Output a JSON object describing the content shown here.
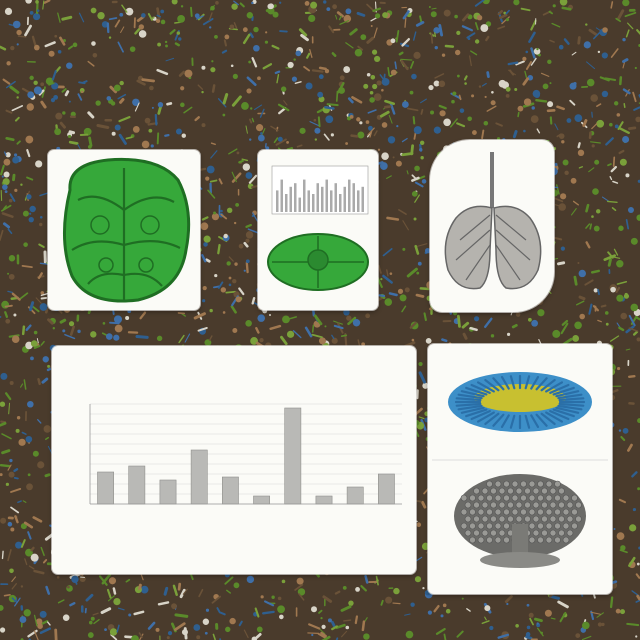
{
  "colors": {
    "ground_dark": "#4a3b2c",
    "ground_mid": "#6a5238",
    "speck_green": "#5a8a2a",
    "speck_blue": "#3f6fa8",
    "speck_light": "#d8d4c8",
    "card_bg": "#fbfbf7",
    "leaf_green": "#36a83a",
    "leaf_dark": "#1f6e23",
    "bar_gray": "#b9b9b6",
    "anemone_blue": "#3d8fc8",
    "anemone_yellow": "#c8c030",
    "coral_gray": "#6b6b68"
  },
  "images": [
    {
      "name": "green-leaf-illustration"
    },
    {
      "name": "mini-chart-with-leaf"
    },
    {
      "name": "gray-lung-sketch"
    },
    {
      "name": "blue-anemone-illustration"
    },
    {
      "name": "gray-coral-tree-illustration"
    }
  ],
  "chart_data": {
    "type": "bar",
    "title": "",
    "xlabel": "",
    "ylabel": "",
    "ylim": [
      0,
      10
    ],
    "grid": true,
    "legend": "none",
    "categories": [
      "",
      "",
      "",
      "",
      "",
      "",
      "",
      "",
      "",
      ""
    ],
    "values": [
      3.2,
      3.8,
      2.4,
      5.4,
      2.7,
      0.8,
      9.6,
      0.8,
      1.7,
      3.0
    ]
  }
}
